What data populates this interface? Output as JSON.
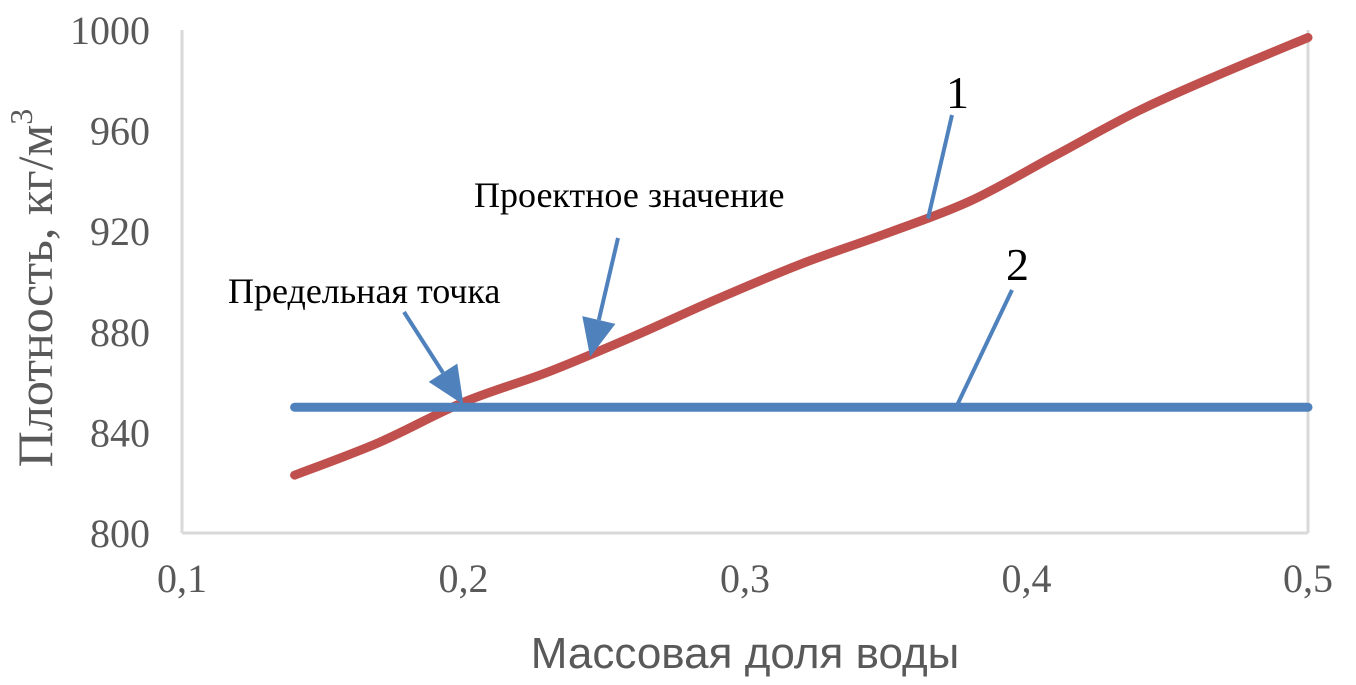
{
  "chart_data": {
    "type": "line",
    "xlabel": "Массовая доля воды",
    "ylabel": "Плотность, кг/м",
    "ylabel_sup": "3",
    "xlim": [
      0.1,
      0.5
    ],
    "ylim": [
      800,
      1000
    ],
    "x_ticks": [
      {
        "value": 0.1,
        "label": "0,1"
      },
      {
        "value": 0.2,
        "label": "0,2"
      },
      {
        "value": 0.3,
        "label": "0,3"
      },
      {
        "value": 0.4,
        "label": "0,4"
      },
      {
        "value": 0.5,
        "label": "0,5"
      }
    ],
    "y_ticks": [
      {
        "value": 800,
        "label": "800"
      },
      {
        "value": 840,
        "label": "840"
      },
      {
        "value": 880,
        "label": "880"
      },
      {
        "value": 920,
        "label": "920"
      },
      {
        "value": 960,
        "label": "960"
      },
      {
        "value": 1000,
        "label": "1000"
      }
    ],
    "grid": false,
    "series": [
      {
        "id": "1",
        "color": "#C0504D",
        "x": [
          0.14,
          0.17,
          0.2,
          0.23,
          0.26,
          0.29,
          0.32,
          0.35,
          0.38,
          0.41,
          0.44,
          0.47,
          0.5
        ],
        "y": [
          823,
          836,
          852,
          864,
          878,
          893,
          907,
          919,
          932,
          950,
          968,
          983,
          997
        ]
      },
      {
        "id": "2",
        "color": "#4F81BD",
        "x": [
          0.14,
          0.5
        ],
        "y": [
          850,
          850
        ]
      }
    ],
    "annotations": [
      {
        "id": "limit-point",
        "text": "Предельная точка",
        "x": 0.2,
        "y": 851
      },
      {
        "id": "design-value",
        "text": "Проектное значение",
        "x": 0.245,
        "y": 870
      }
    ],
    "series_labels": [
      {
        "text": "1",
        "x": 0.365,
        "y": 925
      },
      {
        "text": "2",
        "x": 0.375,
        "y": 850
      }
    ],
    "arrow_color": "#4F81BD",
    "axis_color": "#D9D9D9"
  }
}
